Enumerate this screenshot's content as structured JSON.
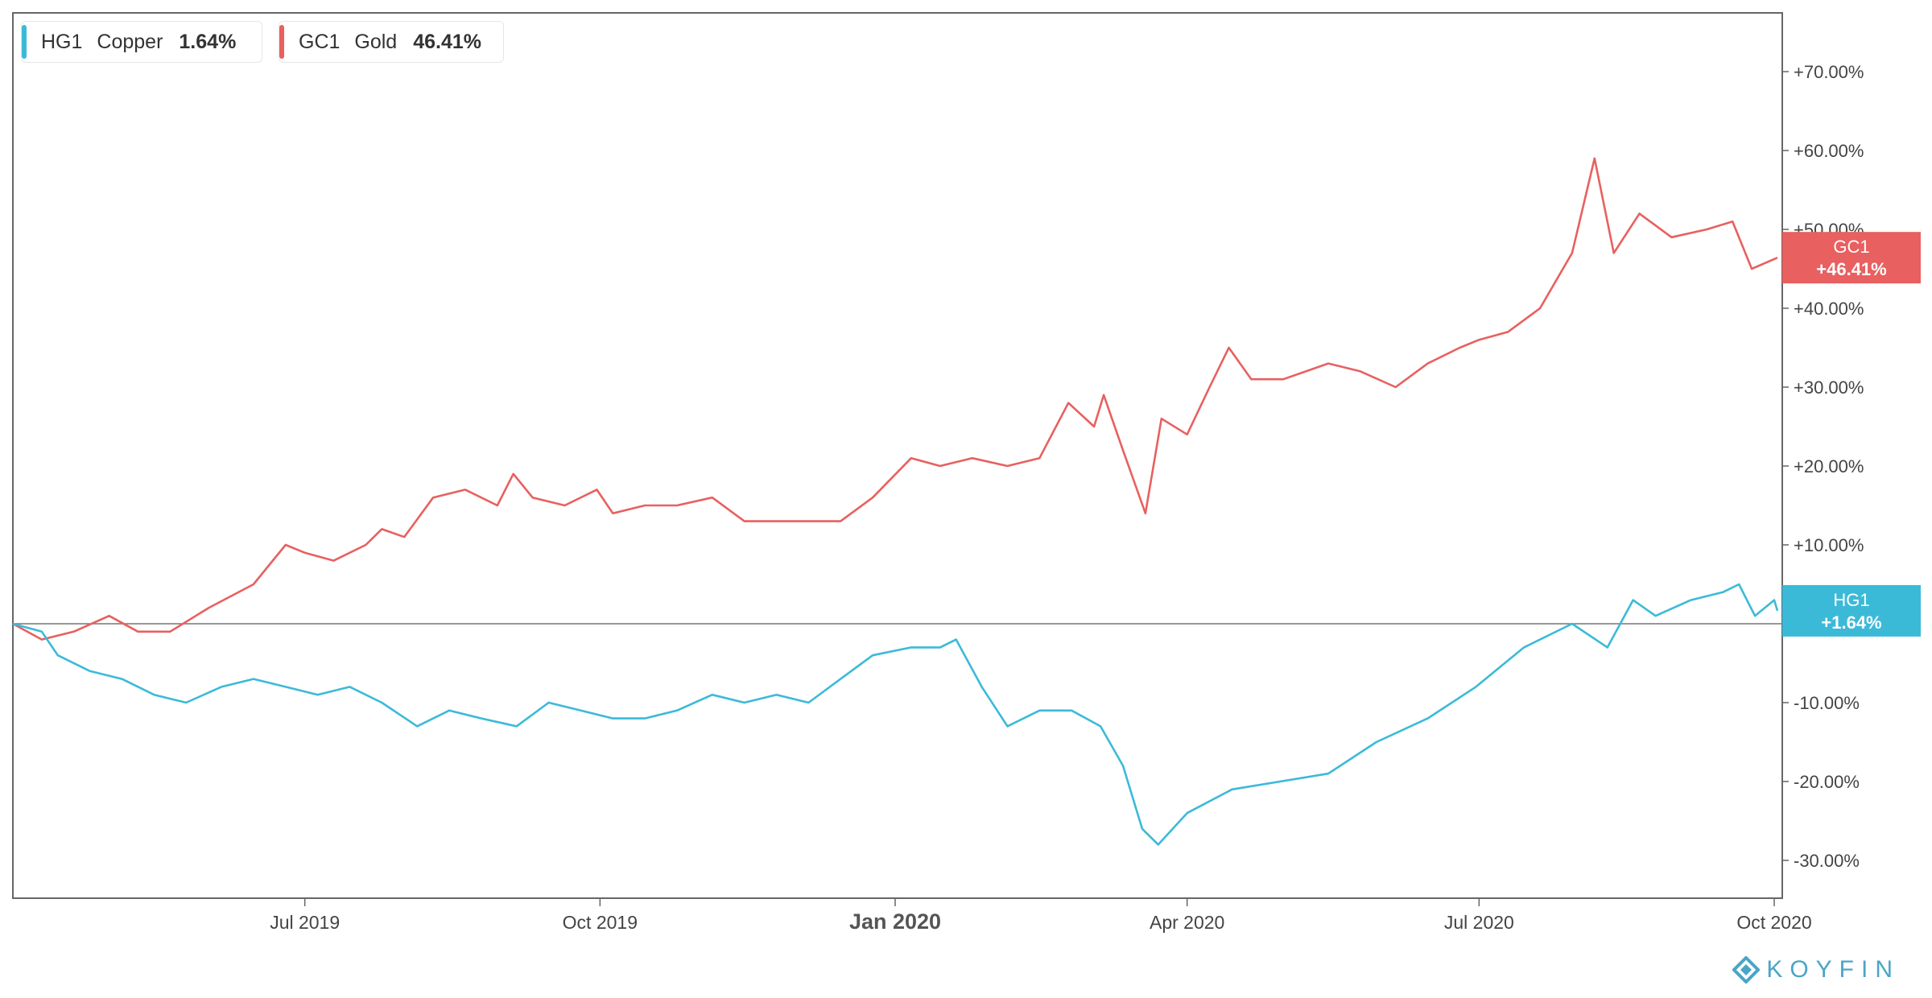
{
  "legend": [
    {
      "ticker": "HG1",
      "name": "Copper",
      "pct": "1.64%",
      "color": "#3bbad8"
    },
    {
      "ticker": "GC1",
      "name": "Gold",
      "pct": "46.41%",
      "color": "#e86060"
    }
  ],
  "brand": {
    "name": "KOYFIN",
    "icon": "koyfin-diamond-icon",
    "color": "#4aa5c8"
  },
  "chart_data": {
    "type": "line",
    "y_unit": "percent change",
    "ylim": [
      -35,
      78
    ],
    "xlim": [
      "2019-04-01",
      "2020-10-02"
    ],
    "grid": false,
    "y_ticks": [
      {
        "value": 70,
        "label": "+70.00%"
      },
      {
        "value": 60,
        "label": "+60.00%"
      },
      {
        "value": 50,
        "label": "+50.00%"
      },
      {
        "value": 40,
        "label": "+40.00%"
      },
      {
        "value": 30,
        "label": "+30.00%"
      },
      {
        "value": 20,
        "label": "+20.00%"
      },
      {
        "value": 10,
        "label": "+10.00%"
      },
      {
        "value": -10,
        "label": "-10.00%"
      },
      {
        "value": -20,
        "label": "-20.00%"
      },
      {
        "value": -30,
        "label": "-30.00%"
      }
    ],
    "x_ticks": [
      {
        "date": "2019-07-01",
        "label": "Jul 2019",
        "major": false
      },
      {
        "date": "2019-10-01",
        "label": "Oct 2019",
        "major": false
      },
      {
        "date": "2020-01-01",
        "label": "Jan 2020",
        "major": true
      },
      {
        "date": "2020-04-01",
        "label": "Apr 2020",
        "major": false
      },
      {
        "date": "2020-07-01",
        "label": "Jul 2020",
        "major": false
      },
      {
        "date": "2020-10-01",
        "label": "Oct 2020",
        "major": false
      }
    ],
    "baseline": 0,
    "series": [
      {
        "name": "GC1",
        "color": "#e86060",
        "end_label": {
          "ticker": "GC1",
          "value": "+46.41%"
        },
        "points": [
          [
            "2019-04-01",
            0
          ],
          [
            "2019-04-10",
            -2
          ],
          [
            "2019-04-20",
            -1
          ],
          [
            "2019-05-01",
            1
          ],
          [
            "2019-05-10",
            -1
          ],
          [
            "2019-05-20",
            -1
          ],
          [
            "2019-06-01",
            2
          ],
          [
            "2019-06-15",
            5
          ],
          [
            "2019-06-25",
            10
          ],
          [
            "2019-07-01",
            9
          ],
          [
            "2019-07-10",
            8
          ],
          [
            "2019-07-20",
            10
          ],
          [
            "2019-07-25",
            12
          ],
          [
            "2019-08-01",
            11
          ],
          [
            "2019-08-10",
            16
          ],
          [
            "2019-08-20",
            17
          ],
          [
            "2019-08-30",
            15
          ],
          [
            "2019-09-04",
            19
          ],
          [
            "2019-09-10",
            16
          ],
          [
            "2019-09-20",
            15
          ],
          [
            "2019-09-30",
            17
          ],
          [
            "2019-10-05",
            14
          ],
          [
            "2019-10-15",
            15
          ],
          [
            "2019-10-25",
            15
          ],
          [
            "2019-11-05",
            16
          ],
          [
            "2019-11-15",
            13
          ],
          [
            "2019-11-25",
            13
          ],
          [
            "2019-12-05",
            13
          ],
          [
            "2019-12-15",
            13
          ],
          [
            "2019-12-25",
            16
          ],
          [
            "2020-01-06",
            21
          ],
          [
            "2020-01-15",
            20
          ],
          [
            "2020-01-25",
            21
          ],
          [
            "2020-02-05",
            20
          ],
          [
            "2020-02-15",
            21
          ],
          [
            "2020-02-24",
            28
          ],
          [
            "2020-03-03",
            25
          ],
          [
            "2020-03-06",
            29
          ],
          [
            "2020-03-12",
            22
          ],
          [
            "2020-03-19",
            14
          ],
          [
            "2020-03-24",
            26
          ],
          [
            "2020-04-01",
            24
          ],
          [
            "2020-04-08",
            30
          ],
          [
            "2020-04-14",
            35
          ],
          [
            "2020-04-21",
            31
          ],
          [
            "2020-05-01",
            31
          ],
          [
            "2020-05-15",
            33
          ],
          [
            "2020-05-25",
            32
          ],
          [
            "2020-06-05",
            30
          ],
          [
            "2020-06-15",
            33
          ],
          [
            "2020-06-25",
            35
          ],
          [
            "2020-07-01",
            36
          ],
          [
            "2020-07-10",
            37
          ],
          [
            "2020-07-20",
            40
          ],
          [
            "2020-07-30",
            47
          ],
          [
            "2020-08-06",
            59
          ],
          [
            "2020-08-12",
            47
          ],
          [
            "2020-08-20",
            52
          ],
          [
            "2020-08-30",
            49
          ],
          [
            "2020-09-10",
            50
          ],
          [
            "2020-09-18",
            51
          ],
          [
            "2020-09-24",
            45
          ],
          [
            "2020-10-02",
            46.41
          ]
        ]
      },
      {
        "name": "HG1",
        "color": "#3bbad8",
        "end_label": {
          "ticker": "HG1",
          "value": "+1.64%"
        },
        "points": [
          [
            "2019-04-01",
            0
          ],
          [
            "2019-04-10",
            -1
          ],
          [
            "2019-04-15",
            -4
          ],
          [
            "2019-04-25",
            -6
          ],
          [
            "2019-05-05",
            -7
          ],
          [
            "2019-05-15",
            -9
          ],
          [
            "2019-05-25",
            -10
          ],
          [
            "2019-06-05",
            -8
          ],
          [
            "2019-06-15",
            -7
          ],
          [
            "2019-06-25",
            -8
          ],
          [
            "2019-07-05",
            -9
          ],
          [
            "2019-07-15",
            -8
          ],
          [
            "2019-07-25",
            -10
          ],
          [
            "2019-08-05",
            -13
          ],
          [
            "2019-08-15",
            -11
          ],
          [
            "2019-08-25",
            -12
          ],
          [
            "2019-09-05",
            -13
          ],
          [
            "2019-09-15",
            -10
          ],
          [
            "2019-09-25",
            -11
          ],
          [
            "2019-10-05",
            -12
          ],
          [
            "2019-10-15",
            -12
          ],
          [
            "2019-10-25",
            -11
          ],
          [
            "2019-11-05",
            -9
          ],
          [
            "2019-11-15",
            -10
          ],
          [
            "2019-11-25",
            -9
          ],
          [
            "2019-12-05",
            -10
          ],
          [
            "2019-12-15",
            -7
          ],
          [
            "2019-12-25",
            -4
          ],
          [
            "2020-01-06",
            -3
          ],
          [
            "2020-01-15",
            -3
          ],
          [
            "2020-01-20",
            -2
          ],
          [
            "2020-01-28",
            -8
          ],
          [
            "2020-02-05",
            -13
          ],
          [
            "2020-02-15",
            -11
          ],
          [
            "2020-02-25",
            -11
          ],
          [
            "2020-03-05",
            -13
          ],
          [
            "2020-03-12",
            -18
          ],
          [
            "2020-03-18",
            -26
          ],
          [
            "2020-03-23",
            -28
          ],
          [
            "2020-04-01",
            -24
          ],
          [
            "2020-04-15",
            -21
          ],
          [
            "2020-04-30",
            -20
          ],
          [
            "2020-05-15",
            -19
          ],
          [
            "2020-05-30",
            -15
          ],
          [
            "2020-06-15",
            -12
          ],
          [
            "2020-06-30",
            -8
          ],
          [
            "2020-07-15",
            -3
          ],
          [
            "2020-07-30",
            0
          ],
          [
            "2020-08-10",
            -3
          ],
          [
            "2020-08-18",
            3
          ],
          [
            "2020-08-25",
            1
          ],
          [
            "2020-09-05",
            3
          ],
          [
            "2020-09-15",
            4
          ],
          [
            "2020-09-20",
            5
          ],
          [
            "2020-09-25",
            1
          ],
          [
            "2020-10-01",
            3
          ],
          [
            "2020-10-02",
            1.64
          ]
        ]
      }
    ]
  }
}
